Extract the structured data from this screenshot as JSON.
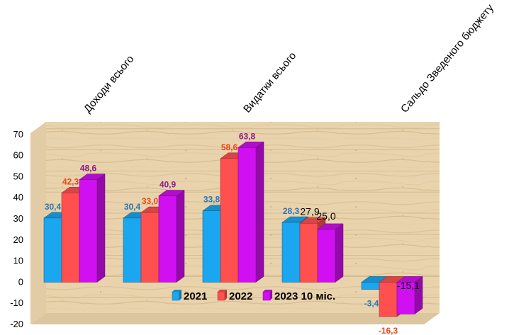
{
  "chart_data": {
    "type": "bar",
    "title": "",
    "xlabel": "",
    "ylabel": "",
    "ylim": [
      -20,
      70
    ],
    "yticks": [
      "-20",
      "-10",
      "0",
      "10",
      "20",
      "30",
      "40",
      "50",
      "60",
      "70"
    ],
    "top_labels": [
      "Доходи всього",
      "Видатки всього",
      "Сальдо Зведеного бюджету"
    ],
    "series": [
      {
        "name": "2021",
        "color": "#1aa7f0",
        "values": [
          30.4,
          30.4,
          33.8,
          28.3,
          -3.4
        ],
        "labels": [
          "30,4",
          "30,4",
          "33,8",
          "28,3",
          "-3,4"
        ],
        "label_color": "#2e75b6"
      },
      {
        "name": "2022",
        "color": "#ff5050",
        "values": [
          42.3,
          33.0,
          58.6,
          27.9,
          -16.3
        ],
        "labels": [
          "42,3",
          "33,0",
          "58,6",
          "27,9",
          "-16,3"
        ],
        "label_color": "#e8481c"
      },
      {
        "name": "2023 10 міс.",
        "color": "#d010f0",
        "values": [
          48.6,
          40.9,
          63.8,
          25.0,
          -15.1
        ],
        "labels": [
          "48,6",
          "40,9",
          "63,8",
          "25,0",
          "-15,1"
        ],
        "label_color": "#8b1a8b"
      }
    ],
    "plain_label_indices": [
      [
        3,
        1
      ],
      [
        3,
        2
      ],
      [
        4,
        2
      ]
    ],
    "legend_position": "bottom-inside",
    "background": "wood-texture",
    "grid": true
  }
}
